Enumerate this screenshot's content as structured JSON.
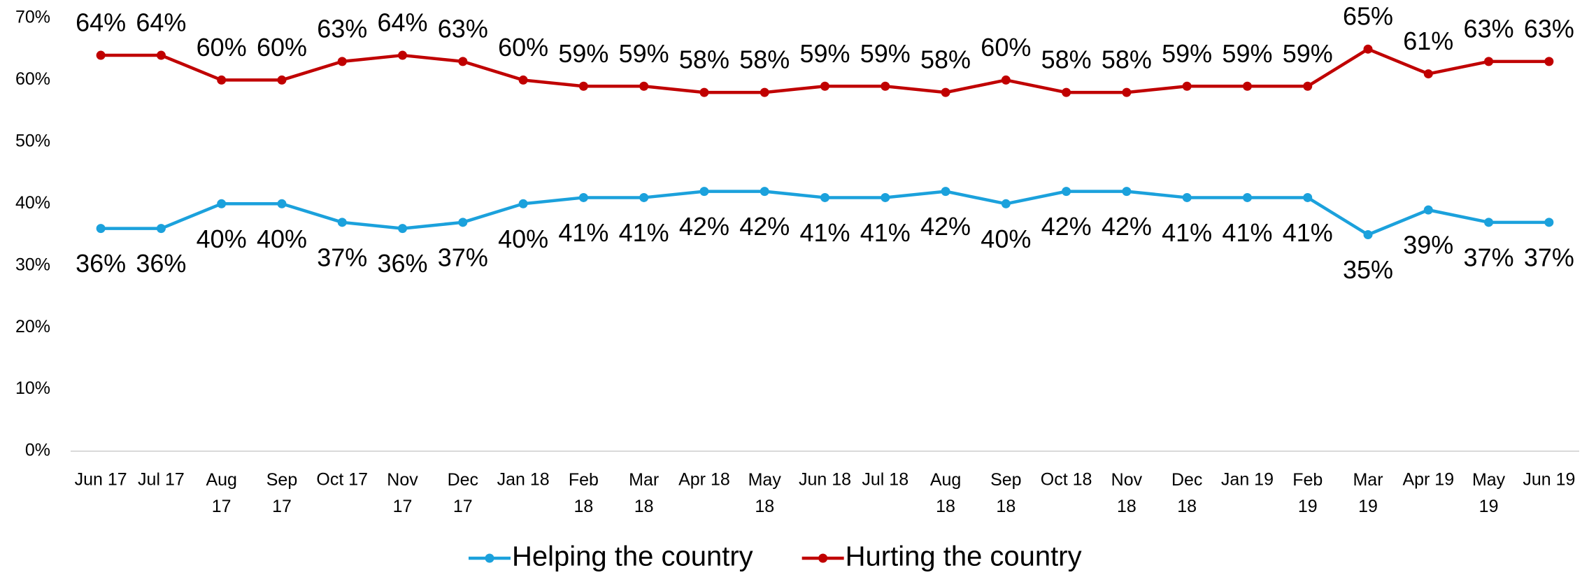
{
  "chart_data": {
    "type": "line",
    "categories": [
      "Jun 17",
      "Jul 17",
      "Aug 17",
      "Sep 17",
      "Oct 17",
      "Nov 17",
      "Dec 17",
      "Jan 18",
      "Feb 18",
      "Mar 18",
      "Apr 18",
      "May 18",
      "Jun 18",
      "Jul 18",
      "Aug 18",
      "Sep 18",
      "Oct 18",
      "Nov 18",
      "Dec 18",
      "Jan 19",
      "Feb 19",
      "Mar 19",
      "Apr 19",
      "May 19",
      "Jun 19"
    ],
    "series": [
      {
        "name": "Helping the country",
        "color": "#1ba1dc",
        "values": [
          36,
          36,
          40,
          40,
          37,
          36,
          37,
          40,
          41,
          41,
          42,
          42,
          41,
          41,
          42,
          40,
          42,
          42,
          41,
          41,
          41,
          35,
          39,
          37,
          37
        ],
        "value_labels": [
          "36%",
          "36%",
          "40%",
          "40%",
          "37%",
          "36%",
          "37%",
          "40%",
          "41%",
          "41%",
          "42%",
          "42%",
          "41%",
          "41%",
          "42%",
          "40%",
          "42%",
          "42%",
          "41%",
          "41%",
          "41%",
          "35%",
          "39%",
          "37%",
          "37%"
        ]
      },
      {
        "name": "Hurting the country",
        "color": "#c00000",
        "values": [
          64,
          64,
          60,
          60,
          63,
          64,
          63,
          60,
          59,
          59,
          58,
          58,
          59,
          59,
          58,
          60,
          58,
          58,
          59,
          59,
          59,
          65,
          61,
          63,
          63
        ],
        "value_labels": [
          "64%",
          "64%",
          "60%",
          "60%",
          "63%",
          "64%",
          "63%",
          "60%",
          "59%",
          "59%",
          "58%",
          "58%",
          "59%",
          "59%",
          "58%",
          "60%",
          "58%",
          "58%",
          "59%",
          "59%",
          "59%",
          "65%",
          "61%",
          "63%",
          "63%"
        ]
      }
    ],
    "ylim": [
      0,
      70
    ],
    "yticks": [
      {
        "value": 0,
        "label": "0%"
      },
      {
        "value": 10,
        "label": "10%"
      },
      {
        "value": 20,
        "label": "20%"
      },
      {
        "value": 30,
        "label": "30%"
      },
      {
        "value": 40,
        "label": "40%"
      },
      {
        "value": 50,
        "label": "50%"
      },
      {
        "value": 60,
        "label": "60%"
      },
      {
        "value": 70,
        "label": "70%"
      }
    ],
    "grid": false,
    "legend": "bottom"
  }
}
